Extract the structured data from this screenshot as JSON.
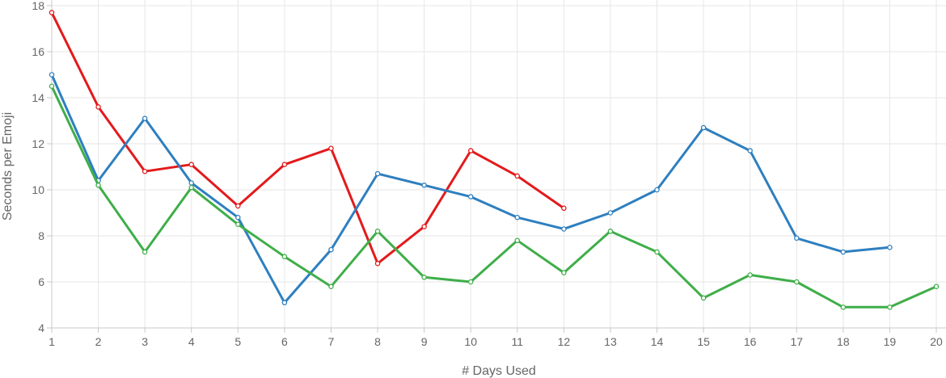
{
  "chart_data": {
    "type": "line",
    "xlabel": "# Days Used",
    "ylabel": "Seconds per Emoji",
    "x": [
      1,
      2,
      3,
      4,
      5,
      6,
      7,
      8,
      9,
      10,
      11,
      12,
      13,
      14,
      15,
      16,
      17,
      18,
      19,
      20
    ],
    "xlim": [
      1,
      20
    ],
    "ylim": [
      4,
      18
    ],
    "yticks": [
      4,
      6,
      8,
      10,
      12,
      14,
      16,
      18
    ],
    "grid": true,
    "series": [
      {
        "color": "#e31a1c",
        "values": [
          17.7,
          13.6,
          10.8,
          11.1,
          9.3,
          11.1,
          11.8,
          6.8,
          8.4,
          11.7,
          10.6,
          9.2,
          null,
          null,
          null,
          null,
          null,
          null,
          null,
          null
        ]
      },
      {
        "color": "#2e7fbf",
        "values": [
          15.0,
          10.4,
          13.1,
          10.3,
          8.8,
          5.1,
          7.4,
          10.7,
          10.2,
          9.7,
          8.8,
          8.3,
          9.0,
          10.0,
          12.7,
          11.7,
          7.9,
          7.3,
          7.5,
          null
        ]
      },
      {
        "color": "#3fae49",
        "values": [
          14.5,
          10.2,
          7.3,
          10.1,
          8.5,
          7.1,
          5.8,
          8.2,
          6.2,
          6.0,
          7.8,
          6.4,
          8.2,
          7.3,
          5.3,
          6.3,
          6.0,
          4.9,
          4.9,
          5.8
        ]
      }
    ]
  }
}
